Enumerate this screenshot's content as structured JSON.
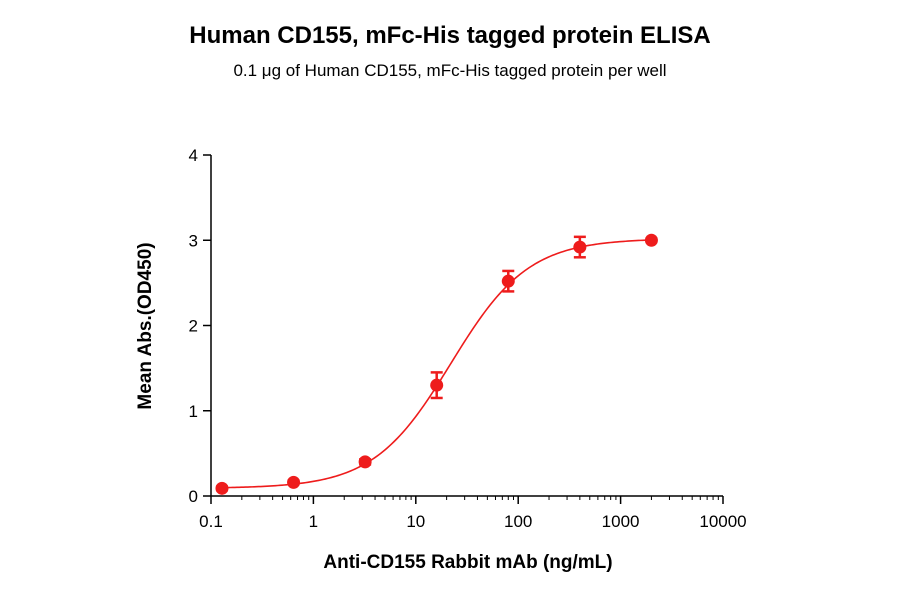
{
  "chart_data": {
    "type": "scatter",
    "title": "Human CD155, mFc-His tagged protein ELISA",
    "subtitle": "0.1 μg of Human CD155, mFc-His tagged protein per well",
    "xlabel": "Anti-CD155 Rabbit mAb (ng/mL)",
    "ylabel": "Mean Abs.(OD450)",
    "x_scale": "log",
    "xlim": [
      0.1,
      10000
    ],
    "ylim": [
      0,
      4
    ],
    "x_ticks": [
      "0.1",
      "1",
      "10",
      "100",
      "1000",
      "10000"
    ],
    "y_ticks": [
      "0",
      "1",
      "2",
      "3",
      "4"
    ],
    "grid": false,
    "color": "#ee1c1c",
    "series": [
      {
        "x": [
          0.128,
          0.64,
          3.2,
          16,
          80,
          400,
          2000
        ],
        "y": [
          0.09,
          0.16,
          0.4,
          1.3,
          2.52,
          2.92,
          3.0
        ],
        "error": [
          0.02,
          0.02,
          0.03,
          0.15,
          0.12,
          0.12,
          0.02
        ]
      }
    ],
    "fit": {
      "model": "4PL",
      "bottom": 0.09,
      "top": 3.02,
      "ec50": 22,
      "hill": 1.15
    }
  }
}
